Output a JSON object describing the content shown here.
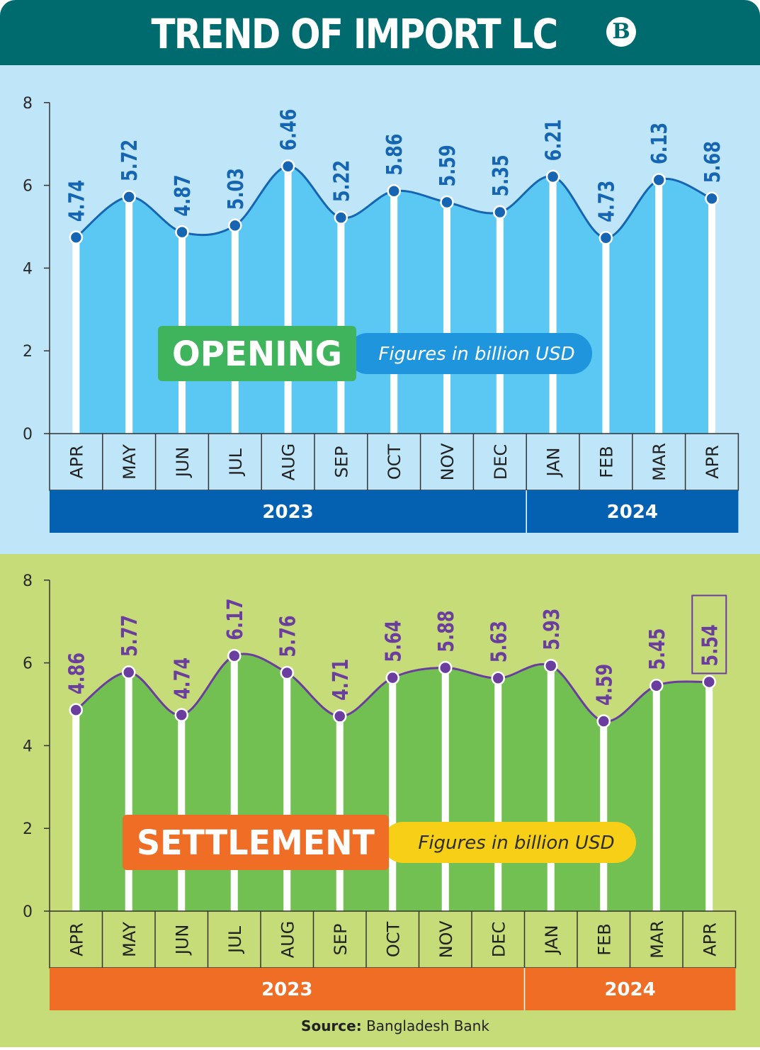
{
  "title": "TREND OF IMPORT LC",
  "logo_text": "B",
  "source_label": "Source:",
  "source_value": "Bangladesh Bank",
  "chart_data": [
    {
      "type": "area",
      "label": "OPENING",
      "unit_note": "Figures in billion USD",
      "categories": [
        "APR",
        "MAY",
        "JUN",
        "JUL",
        "AUG",
        "SEP",
        "OCT",
        "NOV",
        "DEC",
        "JAN",
        "FEB",
        "MAR",
        "APR"
      ],
      "years": [
        {
          "label": "2023",
          "span": 9
        },
        {
          "label": "2024",
          "span": 4
        }
      ],
      "values": [
        4.74,
        5.72,
        4.87,
        5.03,
        6.46,
        5.22,
        5.86,
        5.59,
        5.35,
        6.21,
        4.73,
        6.13,
        5.68
      ],
      "ylim": [
        0,
        8
      ],
      "yticks": [
        0,
        2,
        4,
        6,
        8
      ],
      "colors": {
        "area": "#5ac8f2",
        "line": "#1565b3",
        "label": "#1565b3",
        "year_bar": "#0460b0",
        "badge": "#3fb45d",
        "note_pill": "#1f95dd",
        "note_text": "#ffffff"
      }
    },
    {
      "type": "area",
      "label": "SETTLEMENT",
      "unit_note": "Figures in billion USD",
      "categories": [
        "APR",
        "MAY",
        "JUN",
        "JUL",
        "AUG",
        "SEP",
        "OCT",
        "NOV",
        "DEC",
        "JAN",
        "FEB",
        "MAR",
        "APR"
      ],
      "years": [
        {
          "label": "2023",
          "span": 9
        },
        {
          "label": "2024",
          "span": 4
        }
      ],
      "values": [
        4.86,
        5.77,
        4.74,
        6.17,
        5.76,
        4.71,
        5.64,
        5.88,
        5.63,
        5.93,
        4.59,
        5.45,
        5.54
      ],
      "highlight_last": true,
      "ylim": [
        0,
        8
      ],
      "yticks": [
        0,
        2,
        4,
        6,
        8
      ],
      "colors": {
        "area": "#72c052",
        "line": "#6b3d9e",
        "label": "#6b3d9e",
        "year_bar": "#ef6d24",
        "badge": "#ef6d24",
        "note_pill": "#f6cf16",
        "note_text": "#2e2e2e"
      }
    }
  ]
}
